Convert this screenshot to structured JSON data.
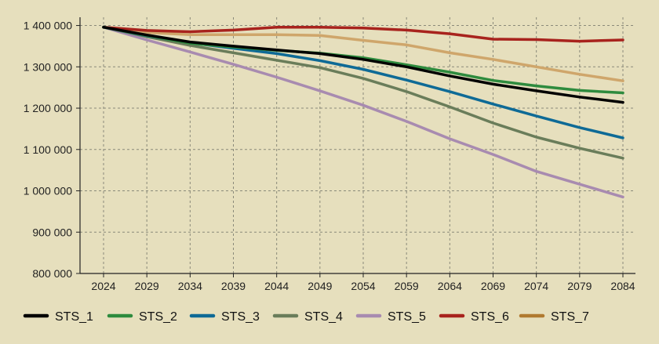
{
  "chart_data": {
    "type": "line",
    "title": "",
    "xlabel": "",
    "ylabel": "",
    "x": [
      2024,
      2029,
      2034,
      2039,
      2044,
      2049,
      2054,
      2059,
      2064,
      2069,
      2074,
      2079,
      2084
    ],
    "x_tick_labels": [
      "2024",
      "2029",
      "2034",
      "2039",
      "2044",
      "2049",
      "2054",
      "2059",
      "2064",
      "2069",
      "2074",
      "2079",
      "2084"
    ],
    "ylim": [
      800000,
      1420000
    ],
    "y_ticks": [
      800000,
      900000,
      1000000,
      1100000,
      1200000,
      1300000,
      1400000
    ],
    "y_tick_labels": [
      "800 000",
      "900 000",
      "1 000 000",
      "1 100 000",
      "1 200 000",
      "1 300 000",
      "1 400 000"
    ],
    "grid": true,
    "legend_position": "bottom",
    "series": [
      {
        "name": "STS_1",
        "color": "#000000",
        "values": [
          1396000,
          1377000,
          1360000,
          1350000,
          1341000,
          1332000,
          1318000,
          1300000,
          1278000,
          1258000,
          1242000,
          1227000,
          1214000
        ]
      },
      {
        "name": "STS_2",
        "color": "#2e8b3e",
        "values": [
          1396000,
          1376000,
          1357000,
          1348000,
          1340000,
          1333000,
          1322000,
          1305000,
          1287000,
          1267000,
          1254000,
          1243000,
          1237000
        ]
      },
      {
        "name": "STS_3",
        "color": "#0e6a96",
        "values": [
          1396000,
          1375000,
          1358000,
          1345000,
          1332000,
          1315000,
          1294000,
          1268000,
          1240000,
          1210000,
          1181000,
          1153000,
          1128000
        ]
      },
      {
        "name": "STS_4",
        "color": "#6a7d5a",
        "values": [
          1396000,
          1373000,
          1352000,
          1334000,
          1316000,
          1298000,
          1272000,
          1240000,
          1203000,
          1164000,
          1130000,
          1103000,
          1079000
        ]
      },
      {
        "name": "STS_5",
        "color": "#a88bb0",
        "values": [
          1396000,
          1365000,
          1336000,
          1306000,
          1275000,
          1242000,
          1207000,
          1168000,
          1126000,
          1088000,
          1047000,
          1016000,
          985000
        ]
      },
      {
        "name": "STS_6",
        "color": "#a8231d",
        "values": [
          1396000,
          1388000,
          1385000,
          1389000,
          1396000,
          1396000,
          1394000,
          1389000,
          1380000,
          1367000,
          1366000,
          1362000,
          1365000
        ]
      },
      {
        "name": "STS_7",
        "color": "#cfa66b",
        "values": [
          1396000,
          1383000,
          1378000,
          1378000,
          1378000,
          1376000,
          1364000,
          1353000,
          1334000,
          1318000,
          1300000,
          1282000,
          1266000
        ]
      }
    ],
    "legend_colors": {
      "STS_7": "#b07a30"
    }
  }
}
